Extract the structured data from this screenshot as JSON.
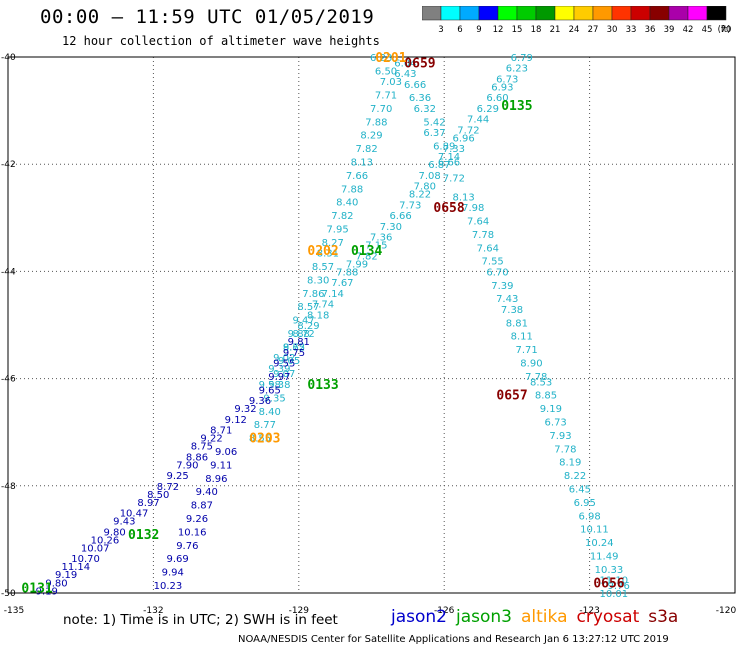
{
  "header": {
    "title": "00:00 – 11:59 UTC 01/05/2019",
    "subtitle": "12 hour collection of altimeter wave heights"
  },
  "colorbar": {
    "labels": [
      "3",
      "6",
      "9",
      "12",
      "15",
      "18",
      "21",
      "24",
      "27",
      "30",
      "33",
      "36",
      "39",
      "42",
      "45",
      "70"
    ],
    "unit": "(ft)",
    "colors": [
      "#808080",
      "#00ffff",
      "#00aaff",
      "#0000ff",
      "#00ff00",
      "#00cc00",
      "#009900",
      "#ffff00",
      "#ffcc00",
      "#ff9900",
      "#ff3300",
      "#cc0000",
      "#880000",
      "#aa00aa",
      "#ff00ff",
      "#000000"
    ]
  },
  "footer": {
    "note": "note:  1) Time is in UTC; 2) SWH is in feet",
    "credit": "NOAA/NESDIS Center for Satellite Applications and Research    Jan  6 13:27:12 UTC 2019"
  },
  "legend": [
    {
      "name": "jason2",
      "color": "#0000cc"
    },
    {
      "name": "jason3",
      "color": "#00a000"
    },
    {
      "name": "altika",
      "color": "#ff9900"
    },
    {
      "name": "cryosat",
      "color": "#cc0000"
    },
    {
      "name": "s3a",
      "color": "#880000"
    }
  ],
  "chart_data": {
    "type": "scatter",
    "title": "00:00 – 11:59 UTC 01/05/2019",
    "subtitle": "12 hour collection of altimeter wave heights",
    "xlim": [
      -135,
      -120
    ],
    "ylim": [
      -50,
      -40
    ],
    "x_ticks": [
      -135,
      -132,
      -129,
      -126,
      -123,
      -120
    ],
    "y_ticks": [
      -40,
      -42,
      -44,
      -46,
      -48,
      -50
    ],
    "grid": true,
    "colors": {
      "cyan": "#22b2c8",
      "blue": "#0000aa",
      "green": "#00a000",
      "orange": "#ff9900",
      "dark_red": "#880000"
    },
    "pass_labels": [
      {
        "text": "0659",
        "x": -126.5,
        "y": -40.1,
        "color": "dark_red"
      },
      {
        "text": "0201",
        "x": -127.1,
        "y": -40.0,
        "color": "orange"
      },
      {
        "text": "0135",
        "x": -124.5,
        "y": -40.9,
        "color": "green"
      },
      {
        "text": "0658",
        "x": -125.9,
        "y": -42.8,
        "color": "dark_red"
      },
      {
        "text": "0202",
        "x": -128.5,
        "y": -43.6,
        "color": "orange"
      },
      {
        "text": "0134",
        "x": -127.6,
        "y": -43.6,
        "color": "green"
      },
      {
        "text": "0133",
        "x": -128.5,
        "y": -46.1,
        "color": "green"
      },
      {
        "text": "0657",
        "x": -124.6,
        "y": -46.3,
        "color": "dark_red"
      },
      {
        "text": "0203",
        "x": -129.7,
        "y": -47.1,
        "color": "orange"
      },
      {
        "text": "0132",
        "x": -132.2,
        "y": -48.9,
        "color": "green"
      },
      {
        "text": "0131",
        "x": -134.4,
        "y": -49.9,
        "color": "green"
      },
      {
        "text": "0656",
        "x": -122.6,
        "y": -49.8,
        "color": "dark_red"
      }
    ],
    "series": [
      {
        "name": "0659",
        "color": "cyan",
        "points": [
          {
            "x": -126.8,
            "y": -40.1,
            "v": "6.04"
          },
          {
            "x": -126.8,
            "y": -40.3,
            "v": "6.43"
          },
          {
            "x": -126.6,
            "y": -40.5,
            "v": "6.66"
          },
          {
            "x": -126.5,
            "y": -40.75,
            "v": "6.36"
          },
          {
            "x": -126.4,
            "y": -40.95,
            "v": "6.32"
          },
          {
            "x": -126.2,
            "y": -41.2,
            "v": "5.42"
          },
          {
            "x": -126.2,
            "y": -41.4,
            "v": "6.37"
          },
          {
            "x": -126.0,
            "y": -41.65,
            "v": "6.89"
          },
          {
            "x": -125.9,
            "y": -41.95,
            "v": "6.66"
          },
          {
            "x": -125.8,
            "y": -42.25,
            "v": "7.72"
          },
          {
            "x": -125.6,
            "y": -42.6,
            "v": "8.13"
          },
          {
            "x": -125.4,
            "y": -42.8,
            "v": "7.98"
          },
          {
            "x": -125.3,
            "y": -43.05,
            "v": "7.64"
          },
          {
            "x": -125.2,
            "y": -43.3,
            "v": "7.78"
          },
          {
            "x": -125.1,
            "y": -43.55,
            "v": "7.64"
          },
          {
            "x": -125.0,
            "y": -43.8,
            "v": "7.55"
          },
          {
            "x": -124.9,
            "y": -44.0,
            "v": "6.70"
          },
          {
            "x": -124.8,
            "y": -44.25,
            "v": "7.39"
          },
          {
            "x": -124.7,
            "y": -44.5,
            "v": "7.43"
          },
          {
            "x": -124.6,
            "y": -44.7,
            "v": "7.38"
          },
          {
            "x": -124.5,
            "y": -44.95,
            "v": "8.81"
          },
          {
            "x": -124.4,
            "y": -45.2,
            "v": "8.11"
          },
          {
            "x": -124.3,
            "y": -45.45,
            "v": "7.71"
          },
          {
            "x": -124.2,
            "y": -45.7,
            "v": "8.90"
          },
          {
            "x": -124.1,
            "y": -45.95,
            "v": "7.78"
          },
          {
            "x": -124.0,
            "y": -46.05,
            "v": "8.53"
          },
          {
            "x": -123.9,
            "y": -46.3,
            "v": "8.85"
          },
          {
            "x": -123.8,
            "y": -46.55,
            "v": "9.19"
          },
          {
            "x": -123.7,
            "y": -46.8,
            "v": "6.73"
          },
          {
            "x": -123.6,
            "y": -47.05,
            "v": "7.93"
          },
          {
            "x": -123.5,
            "y": -47.3,
            "v": "7.78"
          },
          {
            "x": -123.4,
            "y": -47.55,
            "v": "8.19"
          },
          {
            "x": -123.3,
            "y": -47.8,
            "v": "8.22"
          },
          {
            "x": -123.2,
            "y": -48.05,
            "v": "6.45"
          },
          {
            "x": -123.1,
            "y": -48.3,
            "v": "6.95"
          },
          {
            "x": -123.0,
            "y": -48.55,
            "v": "6.98"
          },
          {
            "x": -122.9,
            "y": -48.8,
            "v": "10.11"
          },
          {
            "x": -122.8,
            "y": -49.05,
            "v": "10.24"
          },
          {
            "x": -122.7,
            "y": -49.3,
            "v": "11.49"
          },
          {
            "x": -122.6,
            "y": -49.55,
            "v": "10.33"
          },
          {
            "x": -122.5,
            "y": -49.75,
            "v": "11.10"
          },
          {
            "x": -122.4,
            "y": -49.85,
            "v": "9.76"
          },
          {
            "x": -122.5,
            "y": -50.0,
            "v": "10.01"
          }
        ]
      },
      {
        "name": "0201",
        "color": "cyan",
        "points": [
          {
            "x": -127.3,
            "y": -40.0,
            "v": "6.23"
          },
          {
            "x": -127.2,
            "y": -40.25,
            "v": "6.50"
          },
          {
            "x": -127.1,
            "y": -40.45,
            "v": "7.03"
          },
          {
            "x": -127.2,
            "y": -40.7,
            "v": "7.71"
          },
          {
            "x": -127.3,
            "y": -40.95,
            "v": "7.70"
          },
          {
            "x": -127.4,
            "y": -41.2,
            "v": "7.88"
          },
          {
            "x": -127.5,
            "y": -41.45,
            "v": "8.29"
          },
          {
            "x": -127.6,
            "y": -41.7,
            "v": "7.82"
          },
          {
            "x": -127.7,
            "y": -41.95,
            "v": "8.13"
          },
          {
            "x": -127.8,
            "y": -42.2,
            "v": "7.66"
          },
          {
            "x": -127.9,
            "y": -42.45,
            "v": "7.88"
          },
          {
            "x": -128.0,
            "y": -42.7,
            "v": "8.40"
          },
          {
            "x": -128.1,
            "y": -42.95,
            "v": "7.82"
          },
          {
            "x": -128.2,
            "y": -43.2,
            "v": "7.95"
          },
          {
            "x": -128.3,
            "y": -43.45,
            "v": "8.27"
          },
          {
            "x": -128.4,
            "y": -43.65,
            "v": "8.31"
          },
          {
            "x": -128.5,
            "y": -43.9,
            "v": "8.57"
          },
          {
            "x": -128.6,
            "y": -44.15,
            "v": "8.30"
          },
          {
            "x": -128.7,
            "y": -44.4,
            "v": "7.86"
          },
          {
            "x": -128.8,
            "y": -44.65,
            "v": "8.57"
          },
          {
            "x": -128.9,
            "y": -44.9,
            "v": "9.47"
          },
          {
            "x": -129.0,
            "y": -45.15,
            "v": "9.88"
          },
          {
            "x": -129.1,
            "y": -45.4,
            "v": "9.62"
          },
          {
            "x": -129.2,
            "y": -45.65,
            "v": "9.05"
          },
          {
            "x": -129.3,
            "y": -45.9,
            "v": "9.07"
          },
          {
            "x": -129.4,
            "y": -46.1,
            "v": "9.38"
          },
          {
            "x": -129.5,
            "y": -46.35,
            "v": "9.35"
          },
          {
            "x": -129.6,
            "y": -46.6,
            "v": "8.40"
          },
          {
            "x": -129.7,
            "y": -46.85,
            "v": "8.77"
          },
          {
            "x": -129.8,
            "y": -47.1,
            "v": "8.55"
          }
        ]
      },
      {
        "name": "0135",
        "color": "cyan",
        "points": [
          {
            "x": -124.4,
            "y": -40.0,
            "v": "6.79"
          },
          {
            "x": -124.5,
            "y": -40.2,
            "v": "6.23"
          },
          {
            "x": -124.7,
            "y": -40.4,
            "v": "6.73"
          },
          {
            "x": -124.8,
            "y": -40.55,
            "v": "6.93"
          },
          {
            "x": -124.9,
            "y": -40.75,
            "v": "6.60"
          },
          {
            "x": -125.1,
            "y": -40.95,
            "v": "6.29"
          },
          {
            "x": -125.3,
            "y": -41.15,
            "v": "7.44"
          },
          {
            "x": -125.5,
            "y": -41.35,
            "v": "7.72"
          },
          {
            "x": -125.6,
            "y": -41.5,
            "v": "6.96"
          },
          {
            "x": -125.8,
            "y": -41.7,
            "v": "7.33"
          },
          {
            "x": -125.9,
            "y": -41.85,
            "v": "7.14"
          },
          {
            "x": -126.1,
            "y": -42.0,
            "v": "6.87"
          },
          {
            "x": -126.3,
            "y": -42.2,
            "v": "7.08"
          },
          {
            "x": -126.4,
            "y": -42.4,
            "v": "7.80"
          },
          {
            "x": -126.5,
            "y": -42.55,
            "v": "8.22"
          },
          {
            "x": -126.7,
            "y": -42.75,
            "v": "7.73"
          },
          {
            "x": -126.9,
            "y": -42.95,
            "v": "6.66"
          },
          {
            "x": -127.1,
            "y": -43.15,
            "v": "7.30"
          },
          {
            "x": -127.3,
            "y": -43.35,
            "v": "7.36"
          },
          {
            "x": -127.4,
            "y": -43.5,
            "v": "7.15"
          },
          {
            "x": -127.6,
            "y": -43.7,
            "v": "7.82"
          },
          {
            "x": -127.8,
            "y": -43.85,
            "v": "7.99"
          },
          {
            "x": -128.0,
            "y": -44.0,
            "v": "7.88"
          },
          {
            "x": -128.1,
            "y": -44.2,
            "v": "7.67"
          },
          {
            "x": -128.3,
            "y": -44.4,
            "v": "7.14"
          },
          {
            "x": -128.5,
            "y": -44.6,
            "v": "7.74"
          },
          {
            "x": -128.6,
            "y": -44.8,
            "v": "8.18"
          },
          {
            "x": -128.8,
            "y": -45.0,
            "v": "8.29"
          },
          {
            "x": -128.9,
            "y": -45.15,
            "v": "8.72"
          },
          {
            "x": -129.1,
            "y": -45.4,
            "v": "8.75"
          },
          {
            "x": -129.3,
            "y": -45.6,
            "v": "9.02"
          },
          {
            "x": -129.4,
            "y": -45.8,
            "v": "9.39"
          },
          {
            "x": -129.6,
            "y": -46.1,
            "v": "9.58"
          }
        ]
      },
      {
        "name": "0133",
        "color": "blue",
        "points": [
          {
            "x": -129.0,
            "y": -45.3,
            "v": "9.81"
          },
          {
            "x": -129.1,
            "y": -45.5,
            "v": "9.75"
          },
          {
            "x": -129.3,
            "y": -45.7,
            "v": "9.55"
          },
          {
            "x": -129.4,
            "y": -45.95,
            "v": "9.97"
          },
          {
            "x": -129.6,
            "y": -46.2,
            "v": "9.65"
          },
          {
            "x": -129.8,
            "y": -46.4,
            "v": "9.36"
          },
          {
            "x": -130.1,
            "y": -46.55,
            "v": "9.32"
          },
          {
            "x": -130.3,
            "y": -46.75,
            "v": "9.12"
          },
          {
            "x": -130.6,
            "y": -46.95,
            "v": "8.71"
          },
          {
            "x": -130.8,
            "y": -47.1,
            "v": "9.22"
          },
          {
            "x": -131.0,
            "y": -47.25,
            "v": "8.75"
          },
          {
            "x": -131.1,
            "y": -47.45,
            "v": "8.86"
          },
          {
            "x": -131.3,
            "y": -47.6,
            "v": "7.90"
          },
          {
            "x": -131.5,
            "y": -47.8,
            "v": "9.25"
          },
          {
            "x": -131.7,
            "y": -48.0,
            "v": "8.72"
          },
          {
            "x": -131.9,
            "y": -48.15,
            "v": "8.50"
          },
          {
            "x": -132.1,
            "y": -48.3,
            "v": "8.97"
          },
          {
            "x": -132.4,
            "y": -48.5,
            "v": "10.47"
          },
          {
            "x": -132.6,
            "y": -48.65,
            "v": "9.43"
          },
          {
            "x": -132.8,
            "y": -48.85,
            "v": "9.80"
          },
          {
            "x": -133.0,
            "y": -49.0,
            "v": "10.26"
          },
          {
            "x": -133.2,
            "y": -49.15,
            "v": "10.07"
          },
          {
            "x": -133.4,
            "y": -49.35,
            "v": "10.70"
          },
          {
            "x": -133.6,
            "y": -49.5,
            "v": "11.14"
          },
          {
            "x": -133.8,
            "y": -49.65,
            "v": "9.19"
          },
          {
            "x": -134.0,
            "y": -49.8,
            "v": "9.80"
          },
          {
            "x": -134.2,
            "y": -49.95,
            "v": "9.19"
          }
        ]
      },
      {
        "name": "0203",
        "color": "blue",
        "points": [
          {
            "x": -130.5,
            "y": -47.35,
            "v": "9.06"
          },
          {
            "x": -130.6,
            "y": -47.6,
            "v": "9.11"
          },
          {
            "x": -130.7,
            "y": -47.85,
            "v": "8.96"
          },
          {
            "x": -130.9,
            "y": -48.1,
            "v": "9.40"
          },
          {
            "x": -131.0,
            "y": -48.35,
            "v": "8.87"
          },
          {
            "x": -131.1,
            "y": -48.6,
            "v": "9.26"
          },
          {
            "x": -131.2,
            "y": -48.85,
            "v": "10.16"
          },
          {
            "x": -131.3,
            "y": -49.1,
            "v": "9.76"
          },
          {
            "x": -131.5,
            "y": -49.35,
            "v": "9.69"
          },
          {
            "x": -131.6,
            "y": -49.6,
            "v": "9.94"
          },
          {
            "x": -131.7,
            "y": -49.85,
            "v": "10.23"
          }
        ]
      }
    ]
  }
}
